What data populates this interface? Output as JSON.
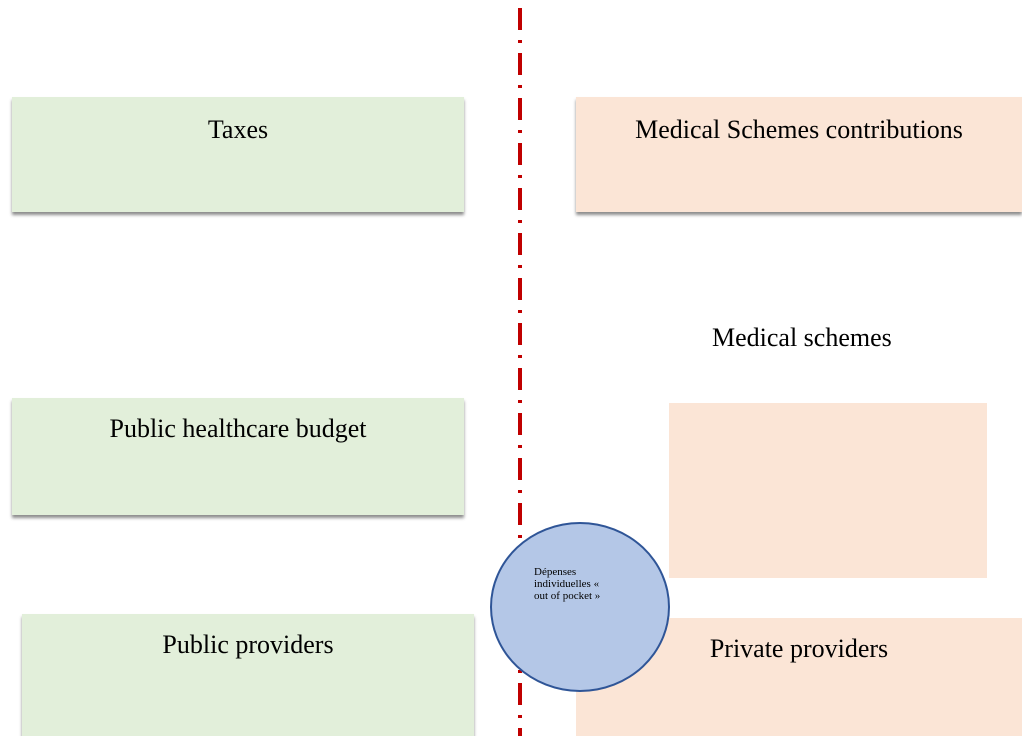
{
  "nodes": [
    {
      "label": "Taxes"
    },
    {
      "label": "Medical Schemes contributions"
    },
    {
      "label": "Medical schemes"
    },
    {
      "label": "Public healthcare budget"
    },
    {
      "label": "Public providers"
    },
    {
      "label": "Private providers"
    },
    {
      "label": "Dépenses individuelles « out  of pocket »"
    }
  ]
}
